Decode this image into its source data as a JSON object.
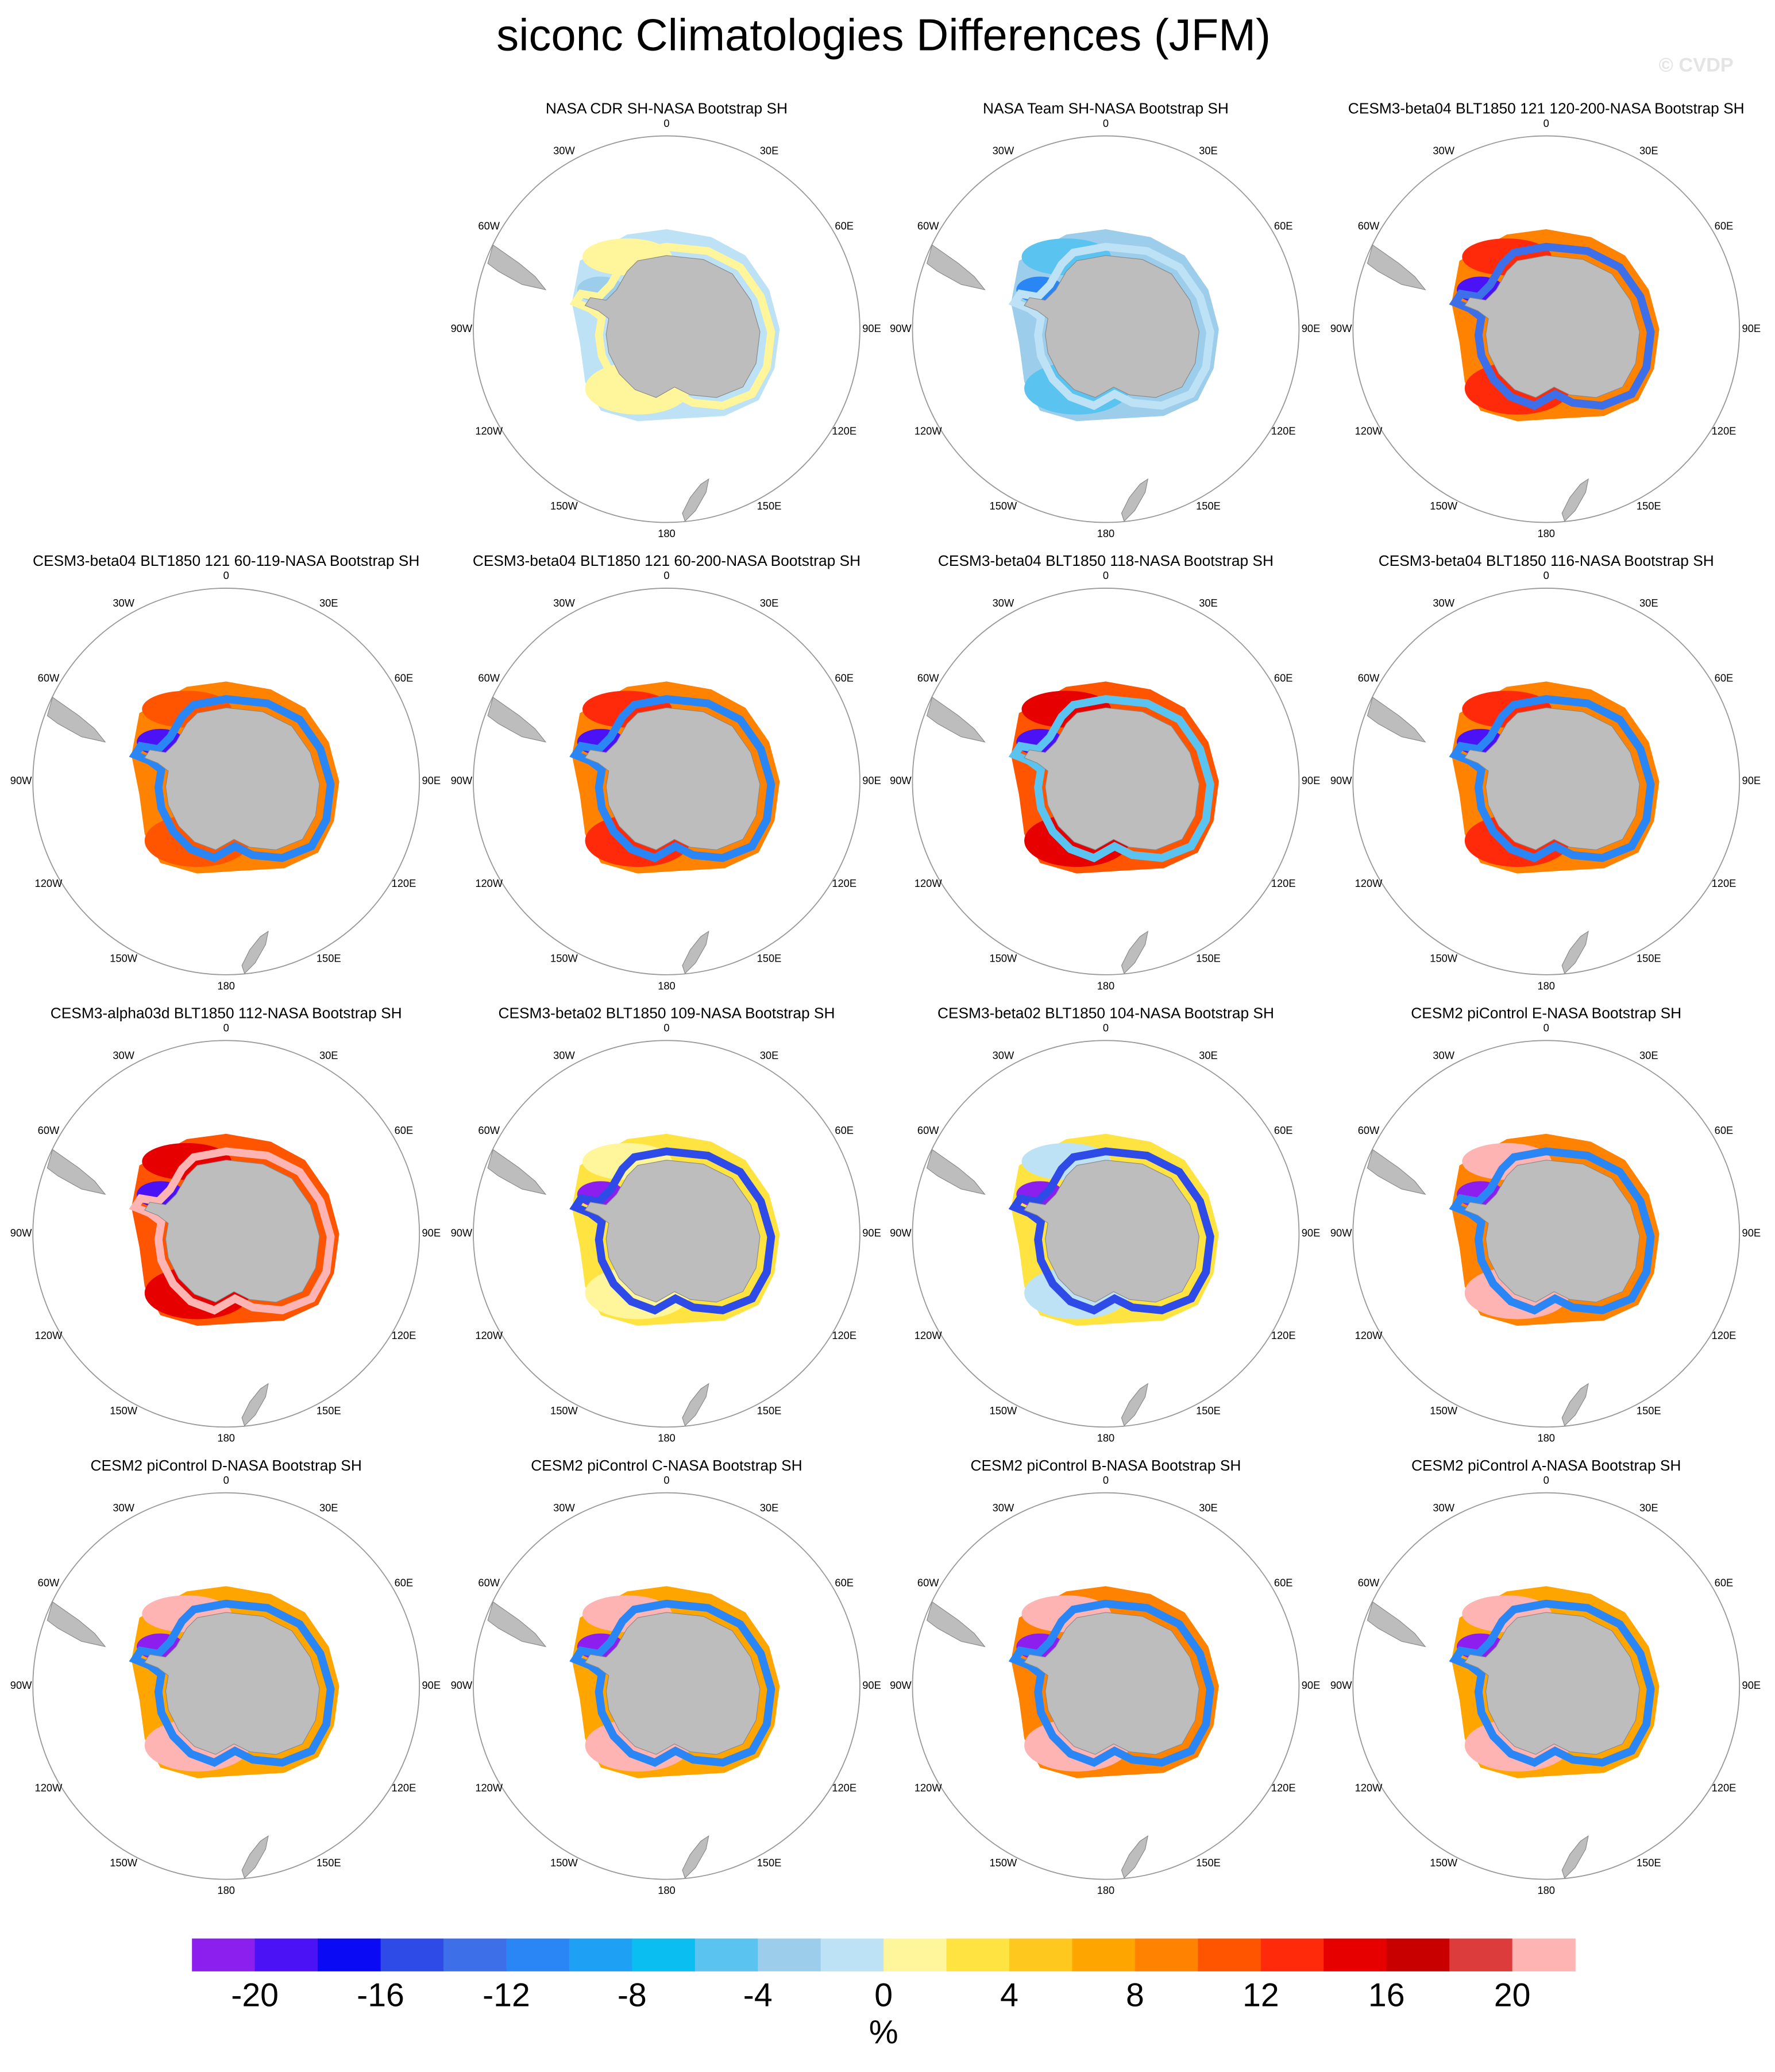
{
  "title": "siconc Climatologies Differences (JFM)",
  "watermark": "© CVDP",
  "lon_labels": [
    "0",
    "30E",
    "60E",
    "90E",
    "120E",
    "150E",
    "180",
    "150W",
    "120W",
    "90W",
    "60W",
    "30W"
  ],
  "panels": [
    {
      "title": "NASA CDR SH-NASA Bootstrap SH"
    },
    {
      "title": "NASA Team SH-NASA Bootstrap SH"
    },
    {
      "title": "CESM3-beta04 BLT1850 121 120-200-NASA Bootstrap SH"
    },
    {
      "title": "CESM3-beta04 BLT1850 121 60-119-NASA Bootstrap SH"
    },
    {
      "title": "CESM3-beta04 BLT1850 121 60-200-NASA Bootstrap SH"
    },
    {
      "title": "CESM3-beta04 BLT1850 118-NASA Bootstrap SH"
    },
    {
      "title": "CESM3-beta04 BLT1850 116-NASA Bootstrap SH"
    },
    {
      "title": "CESM3-alpha03d BLT1850 112-NASA Bootstrap SH"
    },
    {
      "title": "CESM3-beta02 BLT1850 109-NASA Bootstrap SH"
    },
    {
      "title": "CESM3-beta02 BLT1850 104-NASA Bootstrap SH"
    },
    {
      "title": "CESM2 piControl E-NASA Bootstrap SH"
    },
    {
      "title": "CESM2 piControl D-NASA Bootstrap SH"
    },
    {
      "title": "CESM2 piControl C-NASA Bootstrap SH"
    },
    {
      "title": "CESM2 piControl B-NASA Bootstrap SH"
    },
    {
      "title": "CESM2 piControl A-NASA Bootstrap SH"
    }
  ],
  "colorbar": {
    "unit": "%",
    "range": [
      -22,
      22
    ],
    "ticks": [
      -20,
      -16,
      -12,
      -8,
      -4,
      0,
      4,
      8,
      12,
      16,
      20
    ],
    "colors": [
      "#8C1EEE",
      "#4A12F5",
      "#0A0AF5",
      "#2E4BE8",
      "#3D6FE8",
      "#2B86F5",
      "#1EA0F5",
      "#0ABEF2",
      "#5AC3F0",
      "#9CCDEB",
      "#BEE2F5",
      "#FFF59B",
      "#FFE441",
      "#FFC81E",
      "#FFA500",
      "#FF8200",
      "#FF5500",
      "#FF2A0A",
      "#E60000",
      "#C80000",
      "#DC3C3C",
      "#FFB4B4"
    ]
  }
}
